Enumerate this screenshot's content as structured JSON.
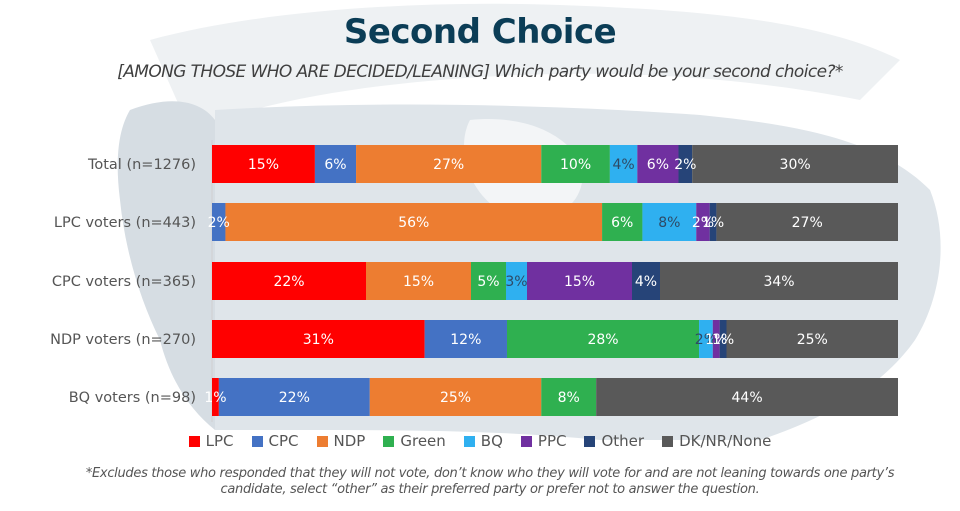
{
  "page": {
    "title": "Second Choice",
    "subtitle": "[AMONG THOSE WHO ARE DECIDED/LEANING] Which party would be your second choice?*",
    "footnote": "*Excludes those who responded that they will not vote, don’t know who they will vote for and are not leaning towards one party’s candidate, select “other” as their preferred party or prefer not to answer the question."
  },
  "chart_data": {
    "type": "bar",
    "orientation": "horizontal",
    "stacked": true,
    "normalized_percent": true,
    "title": "Second Choice",
    "subtitle": "[AMONG THOSE WHO ARE DECIDED/LEANING] Which party would be your second choice?*",
    "xlabel": "",
    "ylabel": "",
    "xlim": [
      0,
      100
    ],
    "grid": false,
    "legend_position": "bottom",
    "categories": [
      "Total (n=1276)",
      "LPC voters (n=443)",
      "CPC voters (n=365)",
      "NDP voters (n=270)",
      "BQ voters (n=98)"
    ],
    "series": [
      {
        "name": "LPC",
        "color": "#ff0000",
        "label_color": "#ffffff",
        "values": [
          15,
          0,
          22,
          31,
          1
        ]
      },
      {
        "name": "CPC",
        "color": "#4472c4",
        "label_color": "#ffffff",
        "values": [
          6,
          2,
          0,
          12,
          22
        ]
      },
      {
        "name": "NDP",
        "color": "#ed7d31",
        "label_color": "#ffffff",
        "values": [
          27,
          56,
          15,
          0,
          25
        ]
      },
      {
        "name": "Green",
        "color": "#2fb050",
        "label_color": "#ffffff",
        "values": [
          10,
          6,
          5,
          28,
          8
        ]
      },
      {
        "name": "BQ",
        "color": "#2fb0f0",
        "label_color": "#2e4a66",
        "values": [
          4,
          8,
          3,
          2,
          0
        ]
      },
      {
        "name": "PPC",
        "color": "#7030a0",
        "label_color": "#ffffff",
        "values": [
          6,
          2,
          15,
          1,
          0
        ]
      },
      {
        "name": "Other",
        "color": "#264478",
        "label_color": "#ffffff",
        "values": [
          2,
          1,
          4,
          1,
          0
        ]
      },
      {
        "name": "DK/NR/None",
        "color": "#595959",
        "label_color": "#ffffff",
        "values": [
          30,
          27,
          34,
          25,
          44
        ]
      }
    ],
    "value_suffix": "%"
  }
}
